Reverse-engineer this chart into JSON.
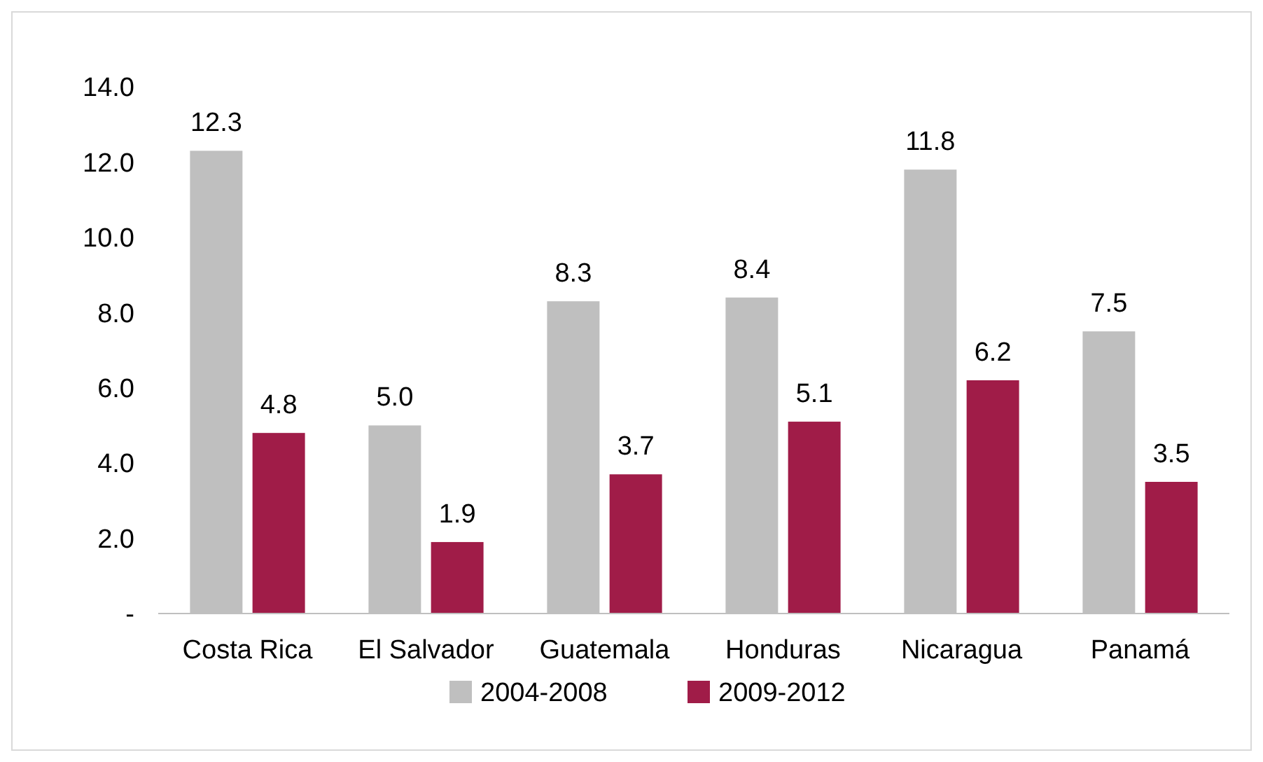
{
  "chart_data": {
    "type": "bar",
    "categories": [
      "Costa Rica",
      "El Salvador",
      "Guatemala",
      "Honduras",
      "Nicaragua",
      "Panamá"
    ],
    "series": [
      {
        "name": "2004-2008",
        "color": "#bfbfbf",
        "values": [
          12.3,
          5.0,
          8.3,
          8.4,
          11.8,
          7.5
        ],
        "value_labels": [
          "12.3",
          "5.0",
          "8.3",
          "8.4",
          "11.8",
          "7.5"
        ]
      },
      {
        "name": "2009-2012",
        "color": "#a01c48",
        "values": [
          4.8,
          1.9,
          3.7,
          5.1,
          6.2,
          3.5
        ],
        "value_labels": [
          "4.8",
          "1.9",
          "3.7",
          "5.1",
          "6.2",
          "3.5"
        ]
      }
    ],
    "ylim": [
      0,
      14
    ],
    "yticks": [
      {
        "value": 0,
        "label": "-"
      },
      {
        "value": 2,
        "label": "2.0"
      },
      {
        "value": 4,
        "label": "4.0"
      },
      {
        "value": 6,
        "label": "6.0"
      },
      {
        "value": 8,
        "label": "8.0"
      },
      {
        "value": 10,
        "label": "10.0"
      },
      {
        "value": 12,
        "label": "12.0"
      },
      {
        "value": 14,
        "label": "14.0"
      }
    ],
    "grid": false,
    "legend": "bottom"
  }
}
